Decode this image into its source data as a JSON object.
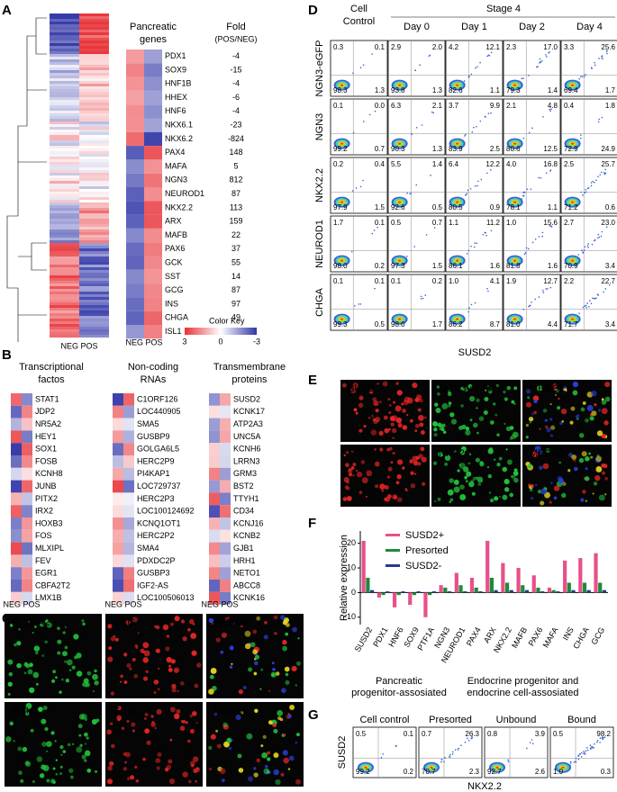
{
  "panel_labels": [
    "A",
    "B",
    "C",
    "D",
    "E",
    "F",
    "G"
  ],
  "a": {
    "header_genes": "Pancreatic",
    "header_genes2": "genes",
    "header_fold": "Fold",
    "header_fold_sub": "(POS/NEG)",
    "genes": [
      "PDX1",
      "SOX9",
      "HNF1B",
      "HHEX",
      "HNF6",
      "NKX6.1",
      "NKX6.2",
      "PAX4",
      "MAFA",
      "NGN3",
      "NEUROD1",
      "NKX2.2",
      "ARX",
      "MAFB",
      "PAX6",
      "GCK",
      "SST",
      "GCG",
      "INS",
      "CHGA",
      "ISL1"
    ],
    "folds": [
      -4,
      -15,
      -4,
      -6,
      -4,
      -23,
      -824,
      148,
      5,
      812,
      87,
      113,
      159,
      22,
      37,
      55,
      14,
      87,
      97,
      49,
      18
    ],
    "neg_pos": "NEG POS",
    "neg_pos_small": "NEG POS",
    "color_key": {
      "title": "Color Key",
      "ticks": [
        "3",
        "0",
        "-3"
      ]
    }
  },
  "b": {
    "groups": [
      {
        "title": [
          "Transcriptional",
          "factos"
        ],
        "genes": [
          "STAT1",
          "JDP2",
          "NR5A2",
          "HEY1",
          "SOX1",
          "FOSB",
          "KCNH8",
          "JUNB",
          "PITX2",
          "IRX2",
          "HOXB3",
          "FOS",
          "MLXIPL",
          "FEV",
          "EGR1",
          "CBFA2T2",
          "LMX1B"
        ]
      },
      {
        "title": [
          "Non-coding",
          "RNAs"
        ],
        "genes": [
          "C1ORF126",
          "LOC440905",
          "SMA5",
          "GUSBP9",
          "GOLGA6L5",
          "HERC2P9",
          "PI4KAP1",
          "LOC729737",
          "HERC2P3",
          "LOC100124692",
          "KCNQ1OT1",
          "HERC2P2",
          "SMA4",
          "PDXDC2P",
          "GUSBP3",
          "IGF2-AS",
          "LOC100506013"
        ]
      },
      {
        "title": [
          "Transmembrane",
          "proteins"
        ],
        "genes": [
          "SUSD2",
          "KCNK17",
          "ATP2A3",
          "UNC5A",
          "KCNH6",
          "LRRN3",
          "GRM3",
          "BST2",
          "TTYH1",
          "CD34",
          "KCNJ16",
          "KCNB2",
          "GJB1",
          "HRH1",
          "NETO1",
          "ABCC8",
          "KCNK16"
        ]
      }
    ],
    "neg_pos": "NEG POS"
  },
  "c": {
    "rows": [
      [
        "PLXNA2",
        "GCG",
        "MERGE"
      ],
      [
        "HRH1",
        "GCG",
        "MERGE"
      ]
    ]
  },
  "d": {
    "col_headers": [
      [
        "Cell",
        "Control"
      ],
      [
        "Day 0"
      ],
      [
        "Day 1"
      ],
      [
        "Day 2"
      ],
      [
        "Day 4"
      ]
    ],
    "stage": "Stage 4",
    "row_labels": [
      "NGN3-eGFP",
      "NGN3",
      "NKX2.2",
      "NEUROD1",
      "CHGA"
    ],
    "x_label": "SUSD2",
    "quadrants": [
      [
        [
          "0.3",
          "0.1",
          "98.3",
          "1.3"
        ],
        [
          "2.9",
          "2.0",
          "93.8",
          "1.3"
        ],
        [
          "4.2",
          "12.1",
          "82.6",
          "1.1"
        ],
        [
          "2.3",
          "17.0",
          "79.3",
          "1.4"
        ],
        [
          "3.3",
          "25.6",
          "69.4",
          "1.7"
        ]
      ],
      [
        [
          "0.1",
          "0.0",
          "99.2",
          "0.7"
        ],
        [
          "6.3",
          "2.1",
          "90.3",
          "1.3"
        ],
        [
          "3.7",
          "9.9",
          "83.9",
          "2.5"
        ],
        [
          "2.1",
          "4.8",
          "80.6",
          "12.5"
        ],
        [
          "0.4",
          "1.8",
          "72.9",
          "24.9"
        ]
      ],
      [
        [
          "0.2",
          "0.4",
          "97.9",
          "1.5"
        ],
        [
          "5.5",
          "1.4",
          "92.6",
          "0.5"
        ],
        [
          "6.4",
          "12.2",
          "80.5",
          "0.9"
        ],
        [
          "4.0",
          "16.8",
          "78.1",
          "1.1"
        ],
        [
          "2.5",
          "25.7",
          "71.2",
          "0.6"
        ]
      ],
      [
        [
          "1.7",
          "0.1",
          "98.0",
          "0.2"
        ],
        [
          "0.5",
          "0.7",
          "97.3",
          "1.5"
        ],
        [
          "1.1",
          "11.2",
          "86.1",
          "1.6"
        ],
        [
          "1.0",
          "15.6",
          "81.8",
          "1.6"
        ],
        [
          "2.7",
          "23.0",
          "70.9",
          "3.4"
        ]
      ],
      [
        [
          "0.1",
          "0.1",
          "99.3",
          "0.5"
        ],
        [
          "0.1",
          "0.2",
          "98.0",
          "1.7"
        ],
        [
          "1.0",
          "4.1",
          "86.2",
          "8.7"
        ],
        [
          "1.9",
          "12.7",
          "81.0",
          "4.4"
        ],
        [
          "2.2",
          "22.7",
          "71.7",
          "3.4"
        ]
      ]
    ]
  },
  "e": {
    "rows": [
      [
        "SUSD2",
        "NGN3-eGFP",
        "MERGE"
      ],
      [
        "SUSD2",
        "NKX2.2",
        "MERGE"
      ]
    ]
  },
  "f": {
    "type": "bar",
    "ylabel": "Relative expression",
    "categories": [
      "SUSD2",
      "PDX1",
      "HNF6",
      "SOX9",
      "PTF1A",
      "NGN3",
      "NEUROD1",
      "PAX4",
      "ARX",
      "NKX2.2",
      "MAFB",
      "PAX6",
      "MAFA",
      "INS",
      "CHGA",
      "GCG"
    ],
    "series": [
      {
        "name": "SUSD2+",
        "color": "#e8508a",
        "values": [
          21,
          -2,
          -6,
          -5,
          -10,
          3,
          8,
          6,
          21,
          12,
          10,
          7,
          2,
          13,
          14,
          16
        ]
      },
      {
        "name": "Presorted",
        "color": "#1e8a3c",
        "values": [
          6,
          -1,
          -1,
          -1,
          -1,
          2,
          3,
          2,
          6,
          4,
          3,
          2,
          1,
          4,
          4,
          4
        ]
      },
      {
        "name": "SUSD2-",
        "color": "#1f3c8f",
        "values": [
          1,
          0.5,
          0.5,
          0.5,
          0.5,
          0.5,
          0.5,
          0.5,
          1,
          1,
          1,
          0.5,
          0.5,
          1,
          1,
          1
        ]
      }
    ],
    "ylim": [
      -13,
      25
    ],
    "yticks": [
      -10,
      0,
      10,
      20
    ],
    "group_labels": [
      [
        "Pancreatic",
        "progenitor-assosiated"
      ],
      [
        "Endocrine progenitor and",
        "endocrine cell-assosiated"
      ]
    ]
  },
  "g": {
    "titles": [
      "Cell control",
      "Presorted",
      "Unbound",
      "Bound"
    ],
    "y_label": "SUSD2",
    "x_label": "NKX2.2",
    "quadrants": [
      [
        "0.5",
        "0.1",
        "99.2",
        "0.2"
      ],
      [
        "0.7",
        "26.3",
        "70.7",
        "2.3"
      ],
      [
        "0.8",
        "3.9",
        "92.7",
        "2.6"
      ],
      [
        "0.5",
        "98.2",
        "1.0",
        "0.3"
      ]
    ]
  }
}
